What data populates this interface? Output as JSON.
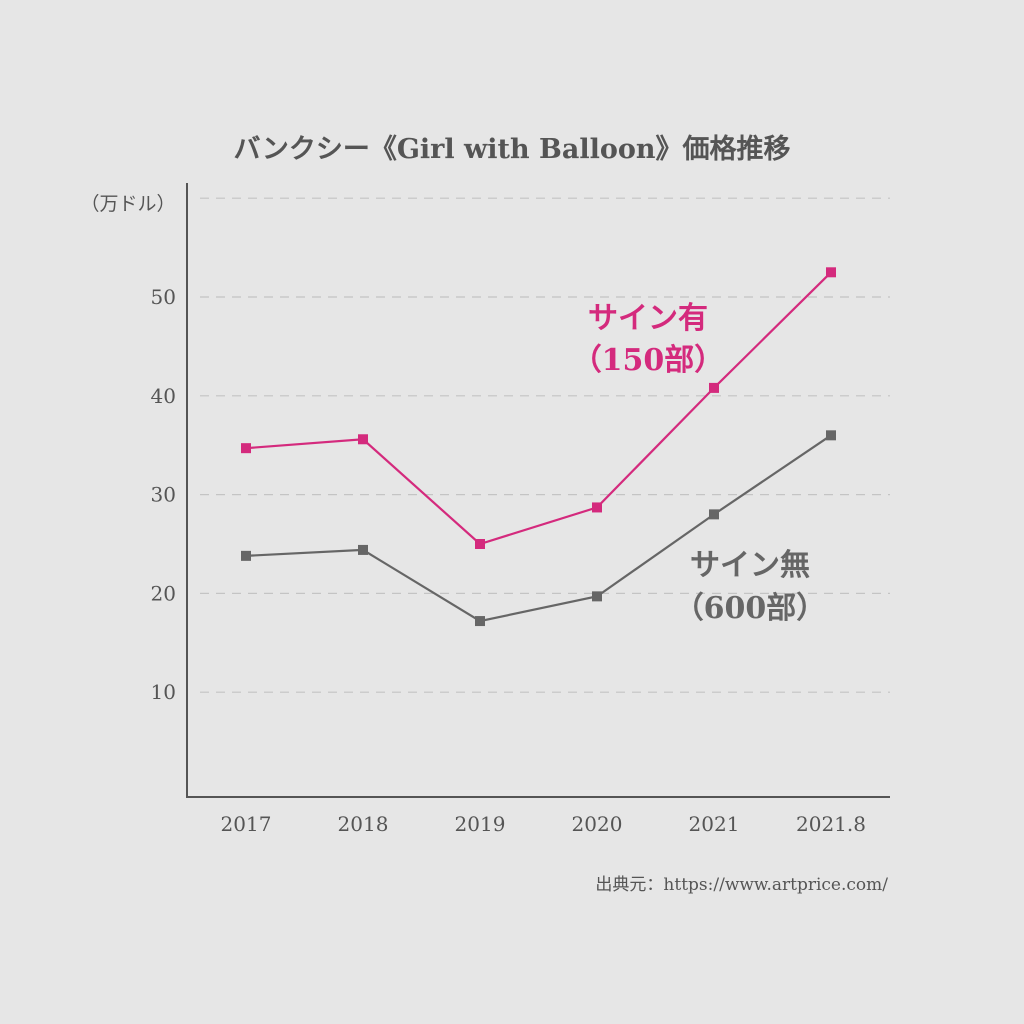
{
  "chart_data": {
    "type": "line",
    "title": "バンクシー《Girl with Balloon》価格推移",
    "ylabel": "（万ドル）",
    "categories": [
      "2017",
      "2018",
      "2019",
      "2020",
      "2021",
      "2021.8"
    ],
    "ylim": [
      0,
      60
    ],
    "yticks": [
      "10",
      "20",
      "30",
      "40",
      "50"
    ],
    "grid": true,
    "series": [
      {
        "name": "サイン有",
        "name_line2": "（150部）",
        "color": "#d42a7d",
        "values": [
          34.7,
          35.6,
          25.0,
          28.7,
          40.8,
          52.5
        ]
      },
      {
        "name": "サイン無",
        "name_line2": "（600部）",
        "color": "#666666",
        "values": [
          23.8,
          24.4,
          17.2,
          19.7,
          28.0,
          36.0
        ]
      }
    ],
    "source": "出典元：https://www.artprice.com/"
  },
  "colors": {
    "background": "#e6e6e6",
    "axis": "#555555",
    "grid": "#c4c4c4",
    "text": "#555555"
  }
}
